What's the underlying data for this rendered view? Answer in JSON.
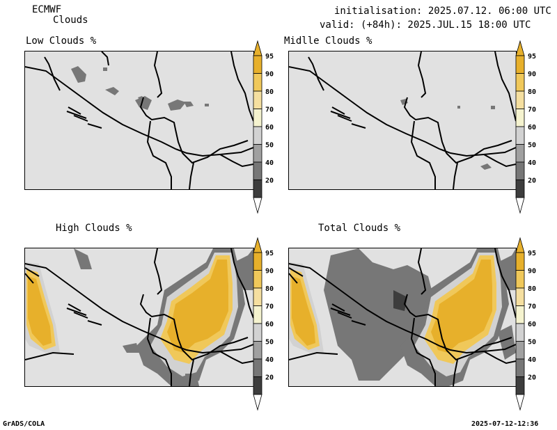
{
  "header": {
    "model": "ECMWF",
    "field": "Clouds",
    "initialisation": "initialisation: 2025.07.12. 06:00 UTC",
    "valid": "valid: (+84h): 2025.JUL.15 18:00 UTC"
  },
  "panels": [
    {
      "title": "Low Clouds %"
    },
    {
      "title": "Midlle Clouds %"
    },
    {
      "title": "High Clouds %"
    },
    {
      "title": "Total Clouds %"
    }
  ],
  "colorbar": {
    "levels": [
      "95",
      "90",
      "80",
      "70",
      "60",
      "50",
      "40",
      "20"
    ],
    "colors": [
      "#e7b02b",
      "#f0c85a",
      "#f5dfa0",
      "#f5f3cf",
      "#d2d2d2",
      "#a0a0a0",
      "#777777",
      "#3d3d3d"
    ],
    "top_color": "#e7b02b",
    "bottom_color": "#ffffff"
  },
  "footer": {
    "left": "GrADS/COLA",
    "right": "2025-07-12-12:36"
  }
}
